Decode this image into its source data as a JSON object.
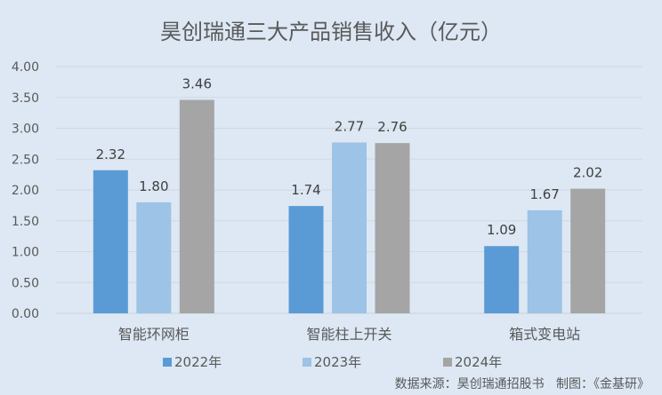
{
  "chart_data": {
    "type": "bar",
    "title": "昊创瑞通三大产品销售收入（亿元）",
    "xlabel": "",
    "ylabel": "",
    "ylim": [
      0,
      4
    ],
    "yticks": [
      "0.00",
      "0.50",
      "1.00",
      "1.50",
      "2.00",
      "2.50",
      "3.00",
      "3.50",
      "4.00"
    ],
    "grid": true,
    "legend_position": "bottom",
    "categories": [
      "智能环网柜",
      "智能柱上开关",
      "箱式变电站"
    ],
    "series": [
      {
        "name": "2022年",
        "color": "#5b9bd5",
        "values": [
          2.32,
          1.74,
          1.09
        ],
        "labels": [
          "2.32",
          "1.74",
          "1.09"
        ]
      },
      {
        "name": "2023年",
        "color": "#9dc3e6",
        "values": [
          1.8,
          2.77,
          1.67
        ],
        "labels": [
          "1.80",
          "2.77",
          "1.67"
        ]
      },
      {
        "name": "2024年",
        "color": "#a5a5a5",
        "values": [
          3.46,
          2.76,
          2.02
        ],
        "labels": [
          "3.46",
          "2.76",
          "2.02"
        ]
      }
    ],
    "annotations": [
      "数据来源：昊创瑞通招股书   制图：《金基研》"
    ]
  },
  "source_note": "数据来源：昊创瑞通招股书   制图：《金基研》"
}
